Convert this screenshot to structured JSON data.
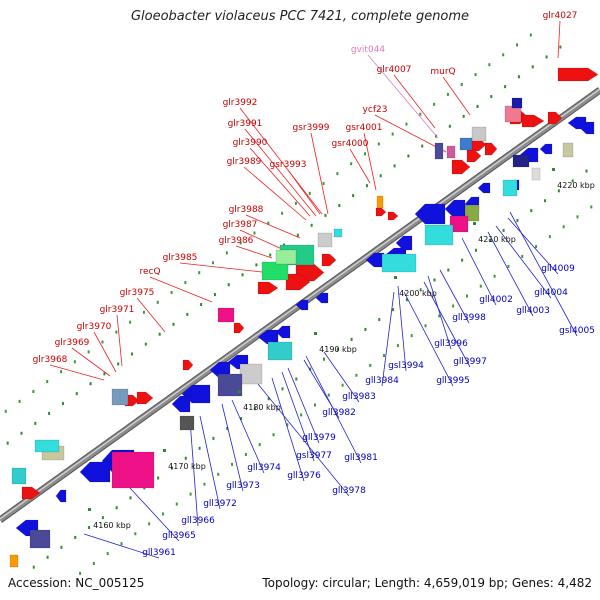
{
  "title": "Gloeobacter violaceus PCC 7421, complete genome",
  "footer": {
    "accession": "Accession: NC_005125",
    "topology": "Topology: circular; Length: 4,659,019 bp; Genes: 4,482"
  },
  "colors": {
    "forward_label": "#cc0000",
    "reverse_label": "#0000bb",
    "rna_label": "#e87ab6",
    "backbone": "#8c8c8c",
    "forward_gene": "#ee1111",
    "reverse_gene": "#1111dd",
    "leader": "#ee2222",
    "reverse_leader": "#2222cc"
  },
  "ticks": [
    "4160 kbp",
    "4170 kbp",
    "4180 kbp",
    "4190 kbp",
    "4200 kbp",
    "4210 kbp",
    "4220 kbp"
  ],
  "forward_labels": [
    "glr4027",
    "gvit044",
    "glr4007",
    "murQ",
    "ycf23",
    "gsr4001",
    "gsr4000",
    "gsr3999",
    "glr3992",
    "glr3991",
    "glr3990",
    "glr3989",
    "gsr3993",
    "glr3988",
    "glr3987",
    "glr3986",
    "glr3985",
    "recQ",
    "glr3975",
    "glr3971",
    "glr3970",
    "glr3969",
    "glr3968"
  ],
  "reverse_labels": [
    "gll4009",
    "gll4004",
    "gll4003",
    "gsl4005",
    "gll4002",
    "gll3998",
    "gll3996",
    "gll3997",
    "gsl3994",
    "gll3995",
    "gll3984",
    "gll3983",
    "gll3982",
    "gll3979",
    "gll3981",
    "gsl3977",
    "gll3976",
    "gll3978",
    "gll3974",
    "gll3973",
    "gll3972",
    "gll3966",
    "gll3965",
    "gll3961"
  ]
}
